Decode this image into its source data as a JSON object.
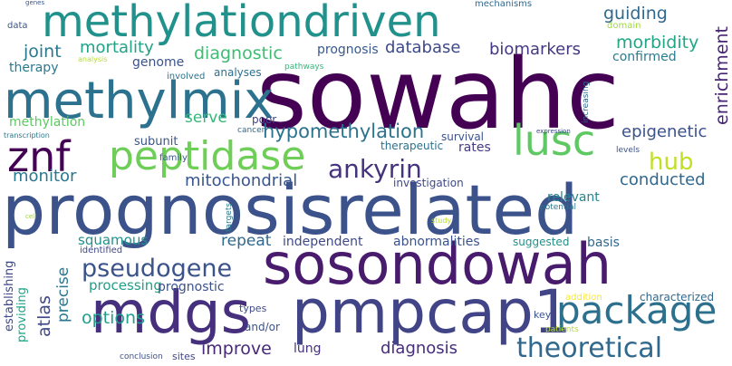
{
  "cloud": {
    "words": [
      {
        "text": "sowahc",
        "color": "#440154"
      },
      {
        "text": "prognosisrelated",
        "color": "#3b528b"
      },
      {
        "text": "methylationdriven",
        "color": "#21918c"
      },
      {
        "text": "methylmix",
        "color": "#2c728e"
      },
      {
        "text": "sosondowah",
        "color": "#481b6d"
      },
      {
        "text": "pmpcap1",
        "color": "#414487"
      },
      {
        "text": "mdgs",
        "color": "#46307e"
      },
      {
        "text": "peptidase",
        "color": "#6ece58"
      },
      {
        "text": "package",
        "color": "#2d708e"
      },
      {
        "text": "lusc",
        "color": "#5ec962"
      },
      {
        "text": "znf",
        "color": "#440154"
      },
      {
        "text": "ankyrin",
        "color": "#46337e"
      },
      {
        "text": "theoretical",
        "color": "#31688e"
      },
      {
        "text": "hub",
        "color": "#c2df23"
      },
      {
        "text": "pseudogene",
        "color": "#3b528b"
      },
      {
        "text": "hypomethylation",
        "color": "#2c728e"
      },
      {
        "text": "diagnostic",
        "color": "#3fbc73"
      },
      {
        "text": "mortality",
        "color": "#20a386"
      },
      {
        "text": "joint",
        "color": "#2a788e"
      },
      {
        "text": "guiding",
        "color": "#31688e"
      },
      {
        "text": "morbidity",
        "color": "#21a685"
      },
      {
        "text": "epigenetic",
        "color": "#3b528b"
      },
      {
        "text": "conducted",
        "color": "#31688e"
      },
      {
        "text": "mitochondrial",
        "color": "#39568c"
      },
      {
        "text": "database",
        "color": "#3e4989"
      },
      {
        "text": "biomarkers",
        "color": "#453781"
      },
      {
        "text": "options",
        "color": "#1f9e89"
      },
      {
        "text": "improve",
        "color": "#482878"
      },
      {
        "text": "diagnosis",
        "color": "#472d7b"
      },
      {
        "text": "monitor",
        "color": "#2a788e"
      },
      {
        "text": "serve",
        "color": "#35b779"
      },
      {
        "text": "abnormalities",
        "color": "#3b528b"
      },
      {
        "text": "repeat",
        "color": "#31688e"
      },
      {
        "text": "processing",
        "color": "#1fa088"
      },
      {
        "text": "prognosis",
        "color": "#38598c"
      },
      {
        "text": "enrichment",
        "color": "#482475"
      },
      {
        "text": "atlas",
        "color": "#3e4a89"
      },
      {
        "text": "squamous",
        "color": "#21918c"
      },
      {
        "text": "independent",
        "color": "#3e4989"
      },
      {
        "text": "relevant",
        "color": "#25848e"
      },
      {
        "text": "genome",
        "color": "#3b528b"
      },
      {
        "text": "confirmed",
        "color": "#287d8e"
      },
      {
        "text": "therapy",
        "color": "#2a788e"
      },
      {
        "text": "methylation",
        "color": "#5ec962"
      },
      {
        "text": "analyses",
        "color": "#2d708e"
      },
      {
        "text": "subunit",
        "color": "#39568c"
      },
      {
        "text": "rates",
        "color": "#443a83"
      },
      {
        "text": "basis",
        "color": "#31688e"
      },
      {
        "text": "precise",
        "color": "#2a788e"
      },
      {
        "text": "lung",
        "color": "#46327e"
      },
      {
        "text": "prognostic",
        "color": "#3b528b"
      },
      {
        "text": "suggested",
        "color": "#21918c"
      },
      {
        "text": "characterized",
        "color": "#31688e"
      },
      {
        "text": "establishing",
        "color": "#3e4989"
      },
      {
        "text": "providing",
        "color": "#20a386"
      },
      {
        "text": "survival",
        "color": "#3b528b"
      },
      {
        "text": "poor",
        "color": "#414487"
      },
      {
        "text": "investigation",
        "color": "#3e4989"
      },
      {
        "text": "therapeutic",
        "color": "#2c728e"
      },
      {
        "text": "identified",
        "color": "#3e4989"
      },
      {
        "text": "family",
        "color": "#39568c"
      },
      {
        "text": "types",
        "color": "#3e4989"
      },
      {
        "text": "and/or",
        "color": "#3b528b"
      },
      {
        "text": "key",
        "color": "#3b528b"
      },
      {
        "text": "sites",
        "color": "#414487"
      },
      {
        "text": "mechanisms",
        "color": "#31688e"
      },
      {
        "text": "data",
        "color": "#39568c"
      },
      {
        "text": "involved",
        "color": "#2c728e"
      },
      {
        "text": "cancer",
        "color": "#31688e"
      },
      {
        "text": "pathways",
        "color": "#35b779"
      },
      {
        "text": "analysis",
        "color": "#b5de2b"
      },
      {
        "text": "domain",
        "color": "#a0da39"
      },
      {
        "text": "increasing",
        "color": "#31688e"
      },
      {
        "text": "levels",
        "color": "#3b528b"
      },
      {
        "text": "potential",
        "color": "#2a788e"
      },
      {
        "text": "expression",
        "color": "#3e4989"
      },
      {
        "text": "transcription",
        "color": "#2a788e"
      },
      {
        "text": "targets",
        "color": "#2a788e"
      },
      {
        "text": "study",
        "color": "#b5de2b"
      },
      {
        "text": "cell",
        "color": "#a0da39"
      },
      {
        "text": "addition",
        "color": "#fde725"
      },
      {
        "text": "patients",
        "color": "#b5de2b"
      },
      {
        "text": "conclusion",
        "color": "#3b528b"
      },
      {
        "text": "genes",
        "color": "#39568c"
      }
    ]
  }
}
